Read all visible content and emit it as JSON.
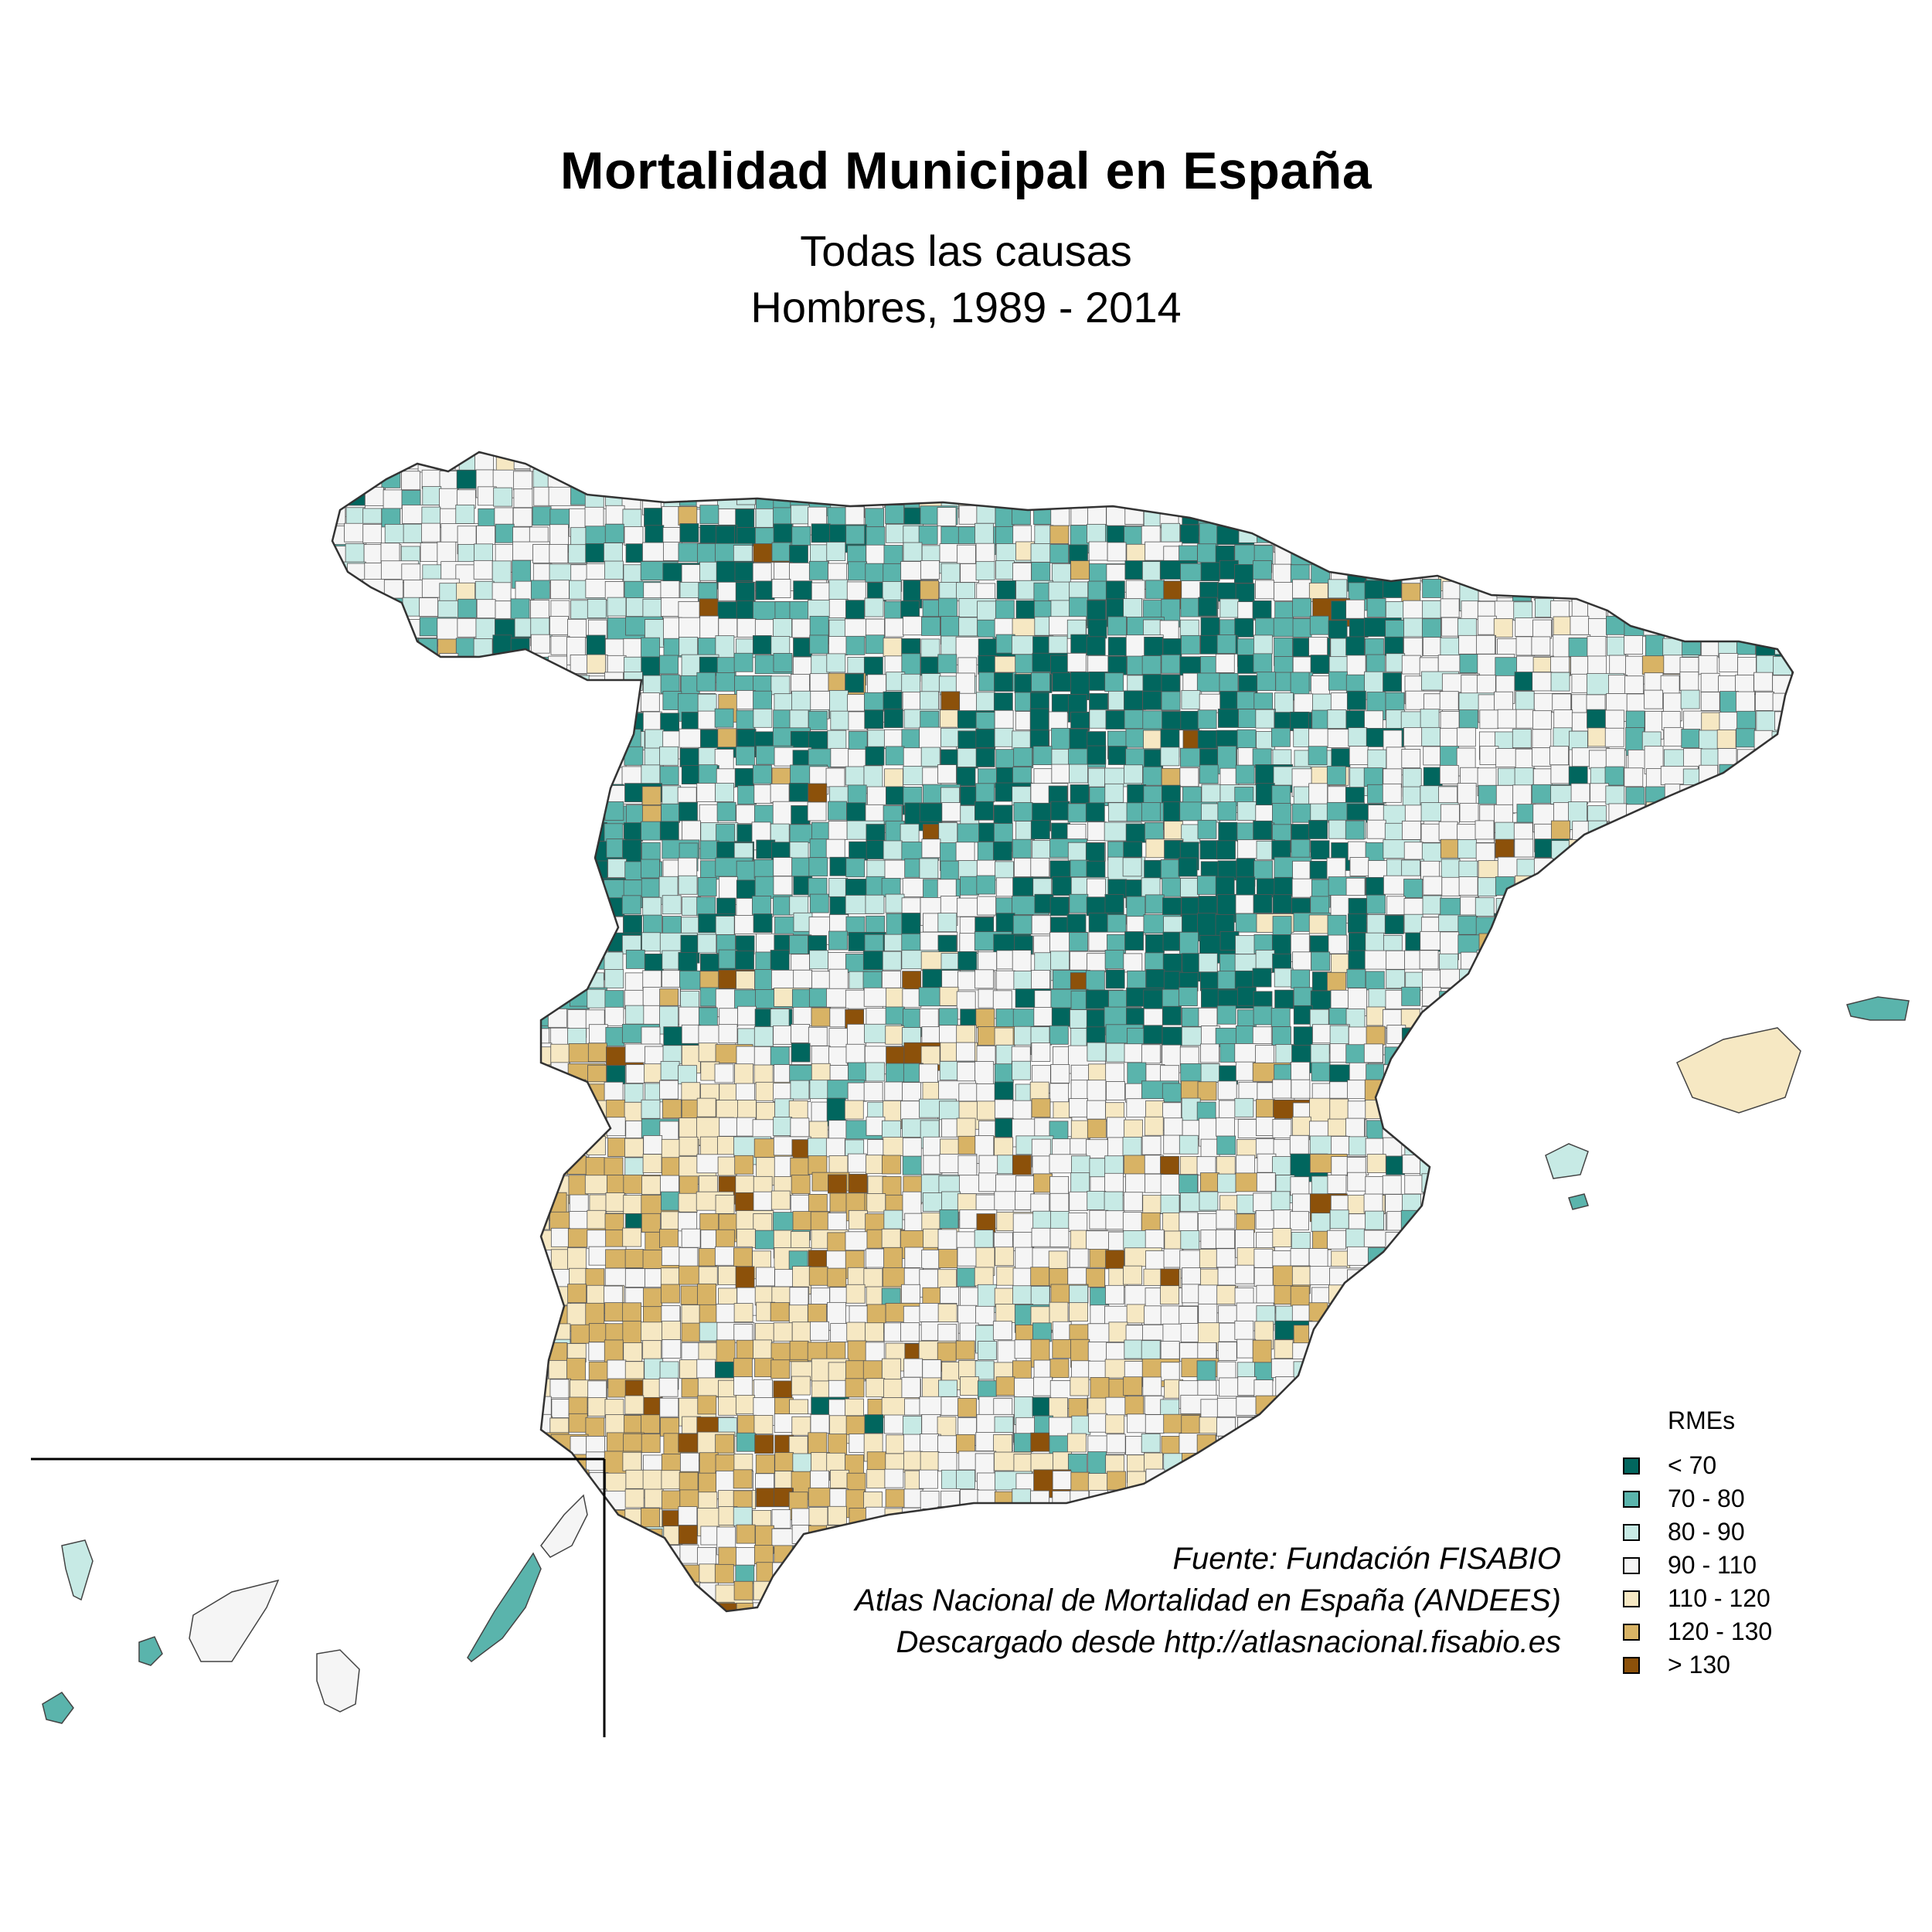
{
  "title": "Mortalidad Municipal en España",
  "subtitle_1": "Todas las causas",
  "subtitle_2": "Hombres, 1989 - 2014",
  "source": {
    "line1": "Fuente: Fundación FISABIO",
    "line2": "Atlas Nacional de Mortalidad en España (ANDEES)",
    "line3": "Descargado desde http://atlasnacional.fisabio.es"
  },
  "legend": {
    "title": "RMEs",
    "items": [
      {
        "label": "< 70",
        "color": "#01665e"
      },
      {
        "label": "70 - 80",
        "color": "#5ab4ac"
      },
      {
        "label": "80 - 90",
        "color": "#c7eae5"
      },
      {
        "label": "90 - 110",
        "color": "#f5f5f5"
      },
      {
        "label": "110 - 120",
        "color": "#f6e8c3"
      },
      {
        "label": "120 - 130",
        "color": "#d8b365"
      },
      {
        "label": "> 130",
        "color": "#8c510a"
      }
    ]
  },
  "map": {
    "border_color": "#555555",
    "inset_frame_color": "#000000"
  }
}
